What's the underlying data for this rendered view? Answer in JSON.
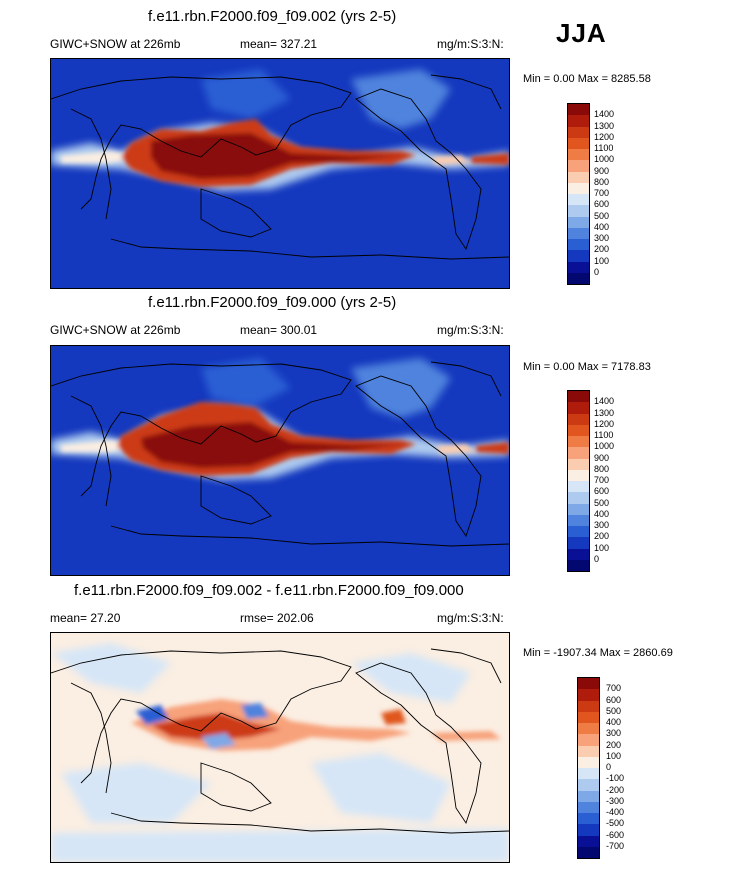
{
  "season": "JJA",
  "panels": [
    {
      "title": "f.e11.rbn.F2000.f09_f09.002 (yrs 2-5)",
      "left_label": "GIWC+SNOW at 226mb",
      "center_label": "mean= 327.21",
      "right_label": "mg/m:S:3:N:",
      "minmax": "Min =  0.00 Max = 8285.58",
      "colorbar": {
        "labels": [
          "1400",
          "1300",
          "1200",
          "1100",
          "1000",
          "900",
          "800",
          "700",
          "600",
          "500",
          "400",
          "300",
          "200",
          "100",
          "0"
        ],
        "colors": [
          "#8a0a0a",
          "#b01c0c",
          "#cc3a14",
          "#e0561e",
          "#ef7b45",
          "#f7a27a",
          "#fbcdb0",
          "#fbeee2",
          "#d6e6f7",
          "#aecbef",
          "#7fa8e6",
          "#4f83dd",
          "#2a5fd4",
          "#1438be",
          "#0a1096",
          "#030870"
        ]
      }
    },
    {
      "title": "f.e11.rbn.F2000.f09_f09.000 (yrs 2-5)",
      "left_label": "GIWC+SNOW at 226mb",
      "center_label": "mean= 300.01",
      "right_label": "mg/m:S:3:N:",
      "minmax": "Min =  0.00 Max = 7178.83",
      "colorbar": {
        "labels": [
          "1400",
          "1300",
          "1200",
          "1100",
          "1000",
          "900",
          "800",
          "700",
          "600",
          "500",
          "400",
          "300",
          "200",
          "100",
          "0"
        ],
        "colors": [
          "#8a0a0a",
          "#b01c0c",
          "#cc3a14",
          "#e0561e",
          "#ef7b45",
          "#f7a27a",
          "#fbcdb0",
          "#fbeee2",
          "#d6e6f7",
          "#aecbef",
          "#7fa8e6",
          "#4f83dd",
          "#2a5fd4",
          "#1438be",
          "#0a1096",
          "#030870"
        ]
      }
    },
    {
      "title": "f.e11.rbn.F2000.f09_f09.002 - f.e11.rbn.F2000.f09_f09.000",
      "left_label": "mean=  27.20",
      "center_label": "rmse= 202.06",
      "right_label": "mg/m:S:3:N:",
      "minmax": "Min = -1907.34 Max = 2860.69",
      "colorbar": {
        "labels": [
          "700",
          "600",
          "500",
          "400",
          "300",
          "200",
          "100",
          "0",
          "-100",
          "-200",
          "-300",
          "-400",
          "-500",
          "-600",
          "-700"
        ],
        "colors": [
          "#8a0a0a",
          "#b01c0c",
          "#cc3a14",
          "#e0561e",
          "#ef7b45",
          "#f7a27a",
          "#fbcdb0",
          "#fbeee2",
          "#d6e6f7",
          "#aecbef",
          "#7fa8e6",
          "#4f83dd",
          "#2a5fd4",
          "#1438be",
          "#0a1096",
          "#030870"
        ]
      }
    }
  ]
}
